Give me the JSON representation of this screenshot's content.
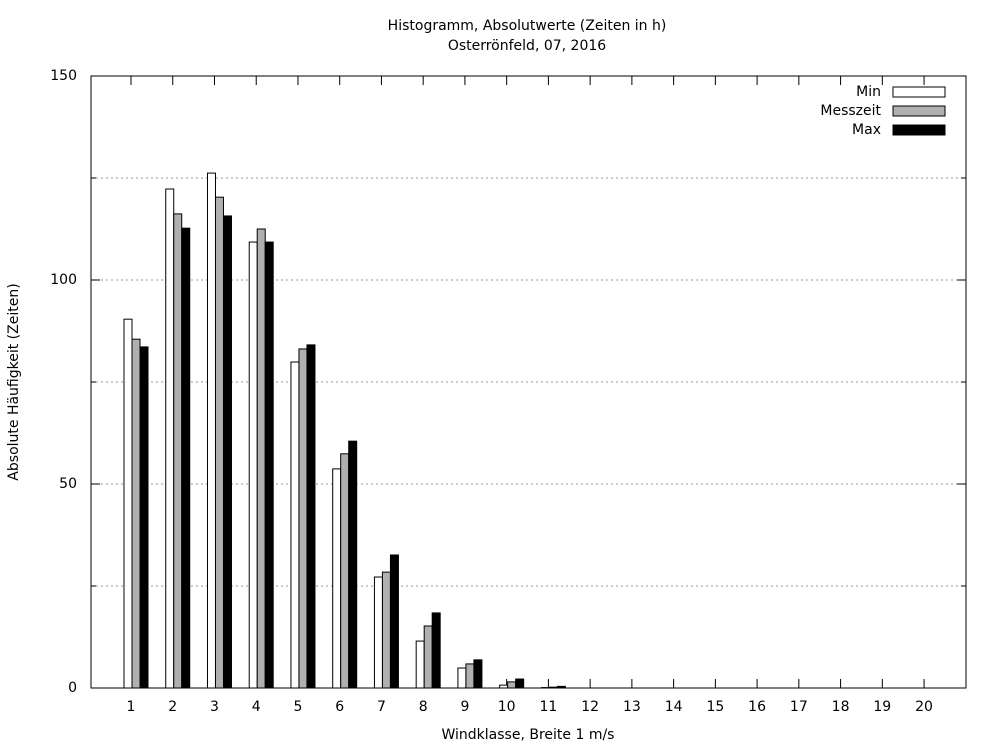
{
  "chart_data": {
    "type": "bar",
    "title": "Histogramm, Absolutwerte (Zeiten in h)",
    "subtitle": "Osterrönfeld, 07, 2016",
    "x_label": "Windklasse, Breite 1 m/s",
    "y_label": "Absolute Häufigkeit (Zeiten)",
    "categories": [
      "1",
      "2",
      "3",
      "4",
      "5",
      "6",
      "7",
      "8",
      "9",
      "10",
      "11",
      "12",
      "13",
      "14",
      "15",
      "16",
      "17",
      "18",
      "19",
      "20"
    ],
    "series": [
      {
        "name": "Min",
        "color": "#ffffff",
        "values": [
          90.4,
          122.3,
          126.2,
          109.3,
          79.9,
          53.7,
          27.2,
          11.5,
          4.9,
          0.7,
          0.1,
          0,
          0,
          0,
          0,
          0,
          0,
          0,
          0,
          0
        ]
      },
      {
        "name": "Messzeit",
        "color": "#b0b0b0",
        "values": [
          85.5,
          116.2,
          120.3,
          112.5,
          83.1,
          57.4,
          28.4,
          15.2,
          5.9,
          1.5,
          0.2,
          0,
          0,
          0,
          0,
          0,
          0,
          0,
          0,
          0
        ]
      },
      {
        "name": "Max",
        "color": "#000000",
        "values": [
          83.6,
          112.7,
          115.7,
          109.3,
          84.1,
          60.5,
          32.6,
          18.4,
          6.9,
          2.2,
          0.4,
          0,
          0,
          0,
          0,
          0,
          0,
          0,
          0,
          0
        ]
      }
    ],
    "ylim": [
      0,
      150
    ],
    "yticks": [
      0,
      50,
      100,
      150
    ],
    "y_minor_ticks": [
      25,
      75,
      125
    ],
    "grid": true,
    "legend": "top-right"
  }
}
